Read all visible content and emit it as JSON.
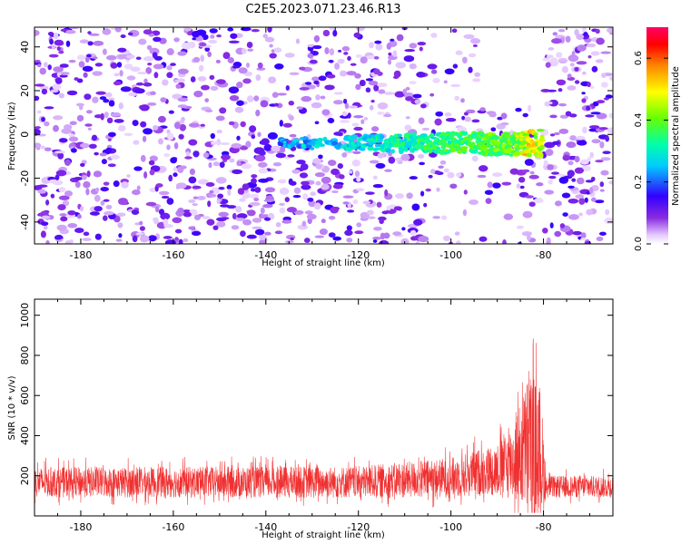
{
  "title": "C2E5.2023.071.23.46.R13",
  "chart_data": [
    {
      "type": "heatmap",
      "xlabel": "Height of straight line (km)",
      "ylabel": "Frequency (Hz)",
      "xlim": [
        -190,
        -65
      ],
      "ylim": [
        -50,
        49
      ],
      "xticks": [
        -180,
        -160,
        -140,
        -120,
        -100,
        -80
      ],
      "yticks": [
        -40,
        -20,
        0,
        20,
        40
      ],
      "colorbar": {
        "label": "Normalized spectral amplitude",
        "range": [
          0,
          0.7
        ],
        "ticks": [
          0.0,
          0.2,
          0.4,
          0.6
        ],
        "colormap": "rainbow"
      },
      "features": {
        "signal_band": {
          "x_range": [
            -137,
            -80
          ],
          "center_hz": -4,
          "peak_amplitude": 0.55,
          "peak_x": -83
        },
        "empty_region": {
          "x_range": [
            -94,
            -80
          ],
          "y_range": [
            12,
            49
          ]
        }
      }
    },
    {
      "type": "line",
      "xlabel": "Height of straight line (km)",
      "ylabel": "SNR (10 * v/v)",
      "xlim": [
        -190,
        -65
      ],
      "ylim": [
        0,
        1080
      ],
      "xticks": [
        -180,
        -160,
        -140,
        -120,
        -100,
        -80
      ],
      "yticks": [
        200,
        400,
        600,
        800,
        1000
      ],
      "series": [
        {
          "color": "#f03030",
          "envelope": [
            {
              "x": -190,
              "base": 160,
              "amp": 150
            },
            {
              "x": -120,
              "base": 160,
              "amp": 160
            },
            {
              "x": -100,
              "base": 180,
              "amp": 200
            },
            {
              "x": -90,
              "base": 220,
              "amp": 260
            },
            {
              "x": -86,
              "base": 260,
              "amp": 420
            },
            {
              "x": -83,
              "base": 320,
              "amp": 750
            },
            {
              "x": -80.5,
              "base": 260,
              "amp": 700
            },
            {
              "x": -79.5,
              "base": 140,
              "amp": 110
            },
            {
              "x": -65,
              "base": 140,
              "amp": 110
            }
          ]
        }
      ]
    }
  ]
}
